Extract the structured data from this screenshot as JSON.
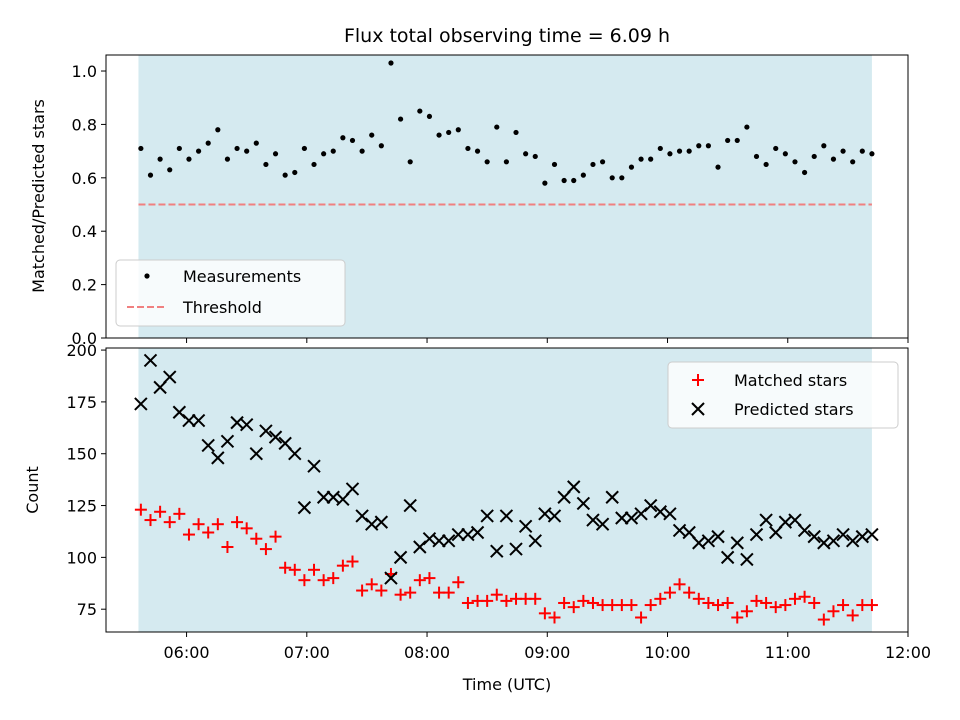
{
  "chart_data": [
    {
      "type": "scatter",
      "title": "Flux total observing time = 6.09 h",
      "xlabel": "",
      "ylabel": "Matched/Predicted stars",
      "ylim": [
        0.0,
        1.06
      ],
      "yticks": [
        0.0,
        0.2,
        0.4,
        0.6,
        0.8,
        1.0
      ],
      "ytick_labels": [
        "0.0",
        "0.2",
        "0.4",
        "0.6",
        "0.8",
        "1.0"
      ],
      "x_range_hours": [
        5.33,
        12.0
      ],
      "observing_window_hours": [
        5.6,
        11.7
      ],
      "shade_color": "#d5eaf0",
      "legend_position": "lower-left",
      "threshold": {
        "name": "Threshold",
        "value": 0.5,
        "color": "#f08080"
      },
      "series": [
        {
          "name": "Measurements",
          "color": "#000000",
          "x": [
            5.62,
            5.7,
            5.78,
            5.86,
            5.94,
            6.02,
            6.1,
            6.18,
            6.26,
            6.34,
            6.42,
            6.5,
            6.58,
            6.66,
            6.74,
            6.82,
            6.9,
            6.98,
            7.06,
            7.14,
            7.22,
            7.3,
            7.38,
            7.46,
            7.54,
            7.62,
            7.7,
            7.78,
            7.86,
            7.94,
            8.02,
            8.1,
            8.18,
            8.26,
            8.34,
            8.42,
            8.5,
            8.58,
            8.66,
            8.74,
            8.82,
            8.9,
            8.98,
            9.06,
            9.14,
            9.22,
            9.3,
            9.38,
            9.46,
            9.54,
            9.62,
            9.7,
            9.78,
            9.86,
            9.94,
            10.02,
            10.1,
            10.18,
            10.26,
            10.34,
            10.42,
            10.5,
            10.58,
            10.66,
            10.74,
            10.82,
            10.9,
            10.98,
            11.06,
            11.14,
            11.22,
            11.3,
            11.38,
            11.46,
            11.54,
            11.62,
            11.7
          ],
          "y": [
            0.71,
            0.61,
            0.67,
            0.63,
            0.71,
            0.67,
            0.7,
            0.73,
            0.78,
            0.67,
            0.71,
            0.7,
            0.73,
            0.65,
            0.69,
            0.61,
            0.62,
            0.71,
            0.65,
            0.69,
            0.7,
            0.75,
            0.74,
            0.7,
            0.76,
            0.72,
            1.03,
            0.82,
            0.66,
            0.85,
            0.83,
            0.76,
            0.77,
            0.78,
            0.71,
            0.7,
            0.66,
            0.79,
            0.66,
            0.77,
            0.69,
            0.68,
            0.58,
            0.65,
            0.59,
            0.59,
            0.61,
            0.65,
            0.66,
            0.6,
            0.6,
            0.64,
            0.67,
            0.67,
            0.71,
            0.69,
            0.7,
            0.7,
            0.72,
            0.72,
            0.64,
            0.74,
            0.74,
            0.79,
            0.68,
            0.65,
            0.71,
            0.69,
            0.66,
            0.62,
            0.68,
            0.72,
            0.67,
            0.7,
            0.66,
            0.7,
            0.69
          ]
        }
      ]
    },
    {
      "type": "scatter",
      "title": "",
      "xlabel": "Time (UTC)",
      "ylabel": "Count",
      "ylim": [
        64,
        201
      ],
      "yticks": [
        75,
        100,
        125,
        150,
        175,
        200
      ],
      "ytick_labels": [
        "75",
        "100",
        "125",
        "150",
        "175",
        "200"
      ],
      "x_range_hours": [
        5.33,
        12.0
      ],
      "xticks_hours": [
        6,
        7,
        8,
        9,
        10,
        11,
        12
      ],
      "xtick_labels": [
        "06:00",
        "07:00",
        "08:00",
        "09:00",
        "10:00",
        "11:00",
        "12:00"
      ],
      "observing_window_hours": [
        5.6,
        11.7
      ],
      "shade_color": "#d5eaf0",
      "legend_position": "top-right",
      "series": [
        {
          "name": "Matched stars",
          "marker": "plus",
          "color": "#ff0000",
          "x": [
            5.62,
            5.7,
            5.78,
            5.86,
            5.94,
            6.02,
            6.1,
            6.18,
            6.26,
            6.34,
            6.42,
            6.5,
            6.58,
            6.66,
            6.74,
            6.82,
            6.9,
            6.98,
            7.06,
            7.14,
            7.22,
            7.3,
            7.38,
            7.46,
            7.54,
            7.62,
            7.7,
            7.78,
            7.86,
            7.94,
            8.02,
            8.1,
            8.18,
            8.26,
            8.34,
            8.42,
            8.5,
            8.58,
            8.66,
            8.74,
            8.82,
            8.9,
            8.98,
            9.06,
            9.14,
            9.22,
            9.3,
            9.38,
            9.46,
            9.54,
            9.62,
            9.7,
            9.78,
            9.86,
            9.94,
            10.02,
            10.1,
            10.18,
            10.26,
            10.34,
            10.42,
            10.5,
            10.58,
            10.66,
            10.74,
            10.82,
            10.9,
            10.98,
            11.06,
            11.14,
            11.22,
            11.3,
            11.38,
            11.46,
            11.54,
            11.62,
            11.7
          ],
          "y": [
            123,
            118,
            122,
            117,
            121,
            111,
            116,
            112,
            116,
            105,
            117,
            114,
            109,
            104,
            110,
            95,
            94,
            89,
            94,
            89,
            90,
            96,
            98,
            84,
            87,
            84,
            92,
            82,
            83,
            89,
            90,
            83,
            83,
            88,
            78,
            79,
            79,
            82,
            79,
            80,
            80,
            80,
            73,
            71,
            78,
            76,
            79,
            78,
            77,
            77,
            77,
            77,
            71,
            77,
            80,
            83,
            87,
            83,
            80,
            78,
            77,
            78,
            71,
            74,
            79,
            78,
            76,
            77,
            80,
            81,
            78,
            70,
            74,
            77,
            72,
            77,
            77
          ]
        },
        {
          "name": "Predicted stars",
          "marker": "x",
          "color": "#000000",
          "x": [
            5.62,
            5.7,
            5.78,
            5.86,
            5.94,
            6.02,
            6.1,
            6.18,
            6.26,
            6.34,
            6.42,
            6.5,
            6.58,
            6.66,
            6.74,
            6.82,
            6.9,
            6.98,
            7.06,
            7.14,
            7.22,
            7.3,
            7.38,
            7.46,
            7.54,
            7.62,
            7.7,
            7.78,
            7.86,
            7.94,
            8.02,
            8.1,
            8.18,
            8.26,
            8.34,
            8.42,
            8.5,
            8.58,
            8.66,
            8.74,
            8.82,
            8.9,
            8.98,
            9.06,
            9.14,
            9.22,
            9.3,
            9.38,
            9.46,
            9.54,
            9.62,
            9.7,
            9.78,
            9.86,
            9.94,
            10.02,
            10.1,
            10.18,
            10.26,
            10.34,
            10.42,
            10.5,
            10.58,
            10.66,
            10.74,
            10.82,
            10.9,
            10.98,
            11.06,
            11.14,
            11.22,
            11.3,
            11.38,
            11.46,
            11.54,
            11.62,
            11.7
          ],
          "y": [
            174,
            195,
            182,
            187,
            170,
            166,
            166,
            154,
            148,
            156,
            165,
            164,
            150,
            161,
            158,
            155,
            150,
            124,
            144,
            129,
            129,
            128,
            133,
            120,
            116,
            117,
            90,
            100,
            125,
            105,
            109,
            108,
            108,
            111,
            111,
            112,
            120,
            103,
            120,
            104,
            115,
            108,
            121,
            120,
            129,
            134,
            126,
            118,
            116,
            129,
            119,
            119,
            121,
            125,
            122,
            121,
            113,
            112,
            107,
            108,
            110,
            100,
            107,
            99,
            111,
            118,
            112,
            117,
            118,
            113,
            110,
            107,
            108,
            111,
            108,
            110,
            111
          ]
        }
      ]
    }
  ]
}
